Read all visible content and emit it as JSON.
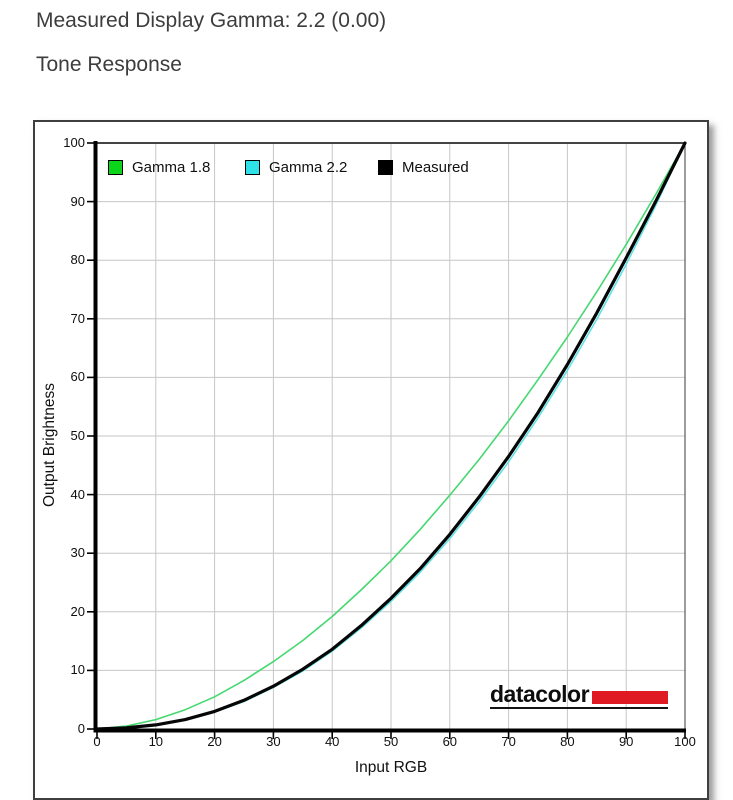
{
  "header": {
    "line1": "Measured Display Gamma: 2.2 (0.00)",
    "line2": "Tone Response"
  },
  "logo": {
    "text": "datacolor",
    "accent_color": "#e01a22"
  },
  "colors": {
    "grid": "#c6c6c6",
    "axis": "#000000",
    "plot_border_top": "#2a2a2a",
    "plot_border_right": "#5a5a5a",
    "frame_border": "#3f3f3f",
    "text": "#101010"
  },
  "chart_data": {
    "type": "line",
    "title": "Tone Response",
    "xlabel": "Input RGB",
    "ylabel": "Output Brightness",
    "xlim": [
      0,
      100
    ],
    "ylim": [
      0,
      100
    ],
    "x_ticks": [
      "0",
      "10",
      "20",
      "30",
      "40",
      "50",
      "60",
      "70",
      "80",
      "90",
      "100"
    ],
    "y_ticks": [
      "0",
      "10",
      "20",
      "30",
      "40",
      "50",
      "60",
      "70",
      "80",
      "90",
      "100"
    ],
    "grid": true,
    "legend_position": "inside-top-left",
    "x": [
      0,
      5,
      10,
      15,
      20,
      25,
      30,
      35,
      40,
      45,
      50,
      55,
      60,
      65,
      70,
      75,
      80,
      85,
      90,
      95,
      100
    ],
    "series": [
      {
        "name": "Gamma 1.8",
        "swatch_color": "#0bd41b",
        "line_color": "#45d870",
        "line_width": 1.6,
        "values": [
          0,
          0.5,
          1.6,
          3.3,
          5.5,
          8.3,
          11.5,
          15.1,
          19.2,
          23.8,
          28.7,
          34.1,
          39.9,
          46.0,
          52.6,
          59.6,
          66.9,
          74.6,
          82.7,
          91.2,
          100
        ]
      },
      {
        "name": "Gamma 2.2",
        "swatch_color": "#2ee1e6",
        "line_color": "#5fe3e6",
        "line_width": 1.6,
        "values": [
          0,
          0.1,
          0.6,
          1.5,
          2.9,
          4.7,
          7.1,
          9.9,
          13.3,
          17.3,
          21.8,
          26.8,
          32.5,
          38.8,
          45.6,
          53.1,
          61.2,
          69.9,
          79.3,
          89.3,
          100
        ]
      },
      {
        "name": "Measured",
        "swatch_color": "#000000",
        "line_color": "#060606",
        "line_width": 3.2,
        "values": [
          0,
          0.2,
          0.7,
          1.6,
          3.0,
          4.9,
          7.3,
          10.2,
          13.6,
          17.7,
          22.3,
          27.4,
          33.2,
          39.6,
          46.5,
          54.0,
          62.2,
          71.0,
          80.4,
          90.0,
          100
        ]
      }
    ]
  }
}
